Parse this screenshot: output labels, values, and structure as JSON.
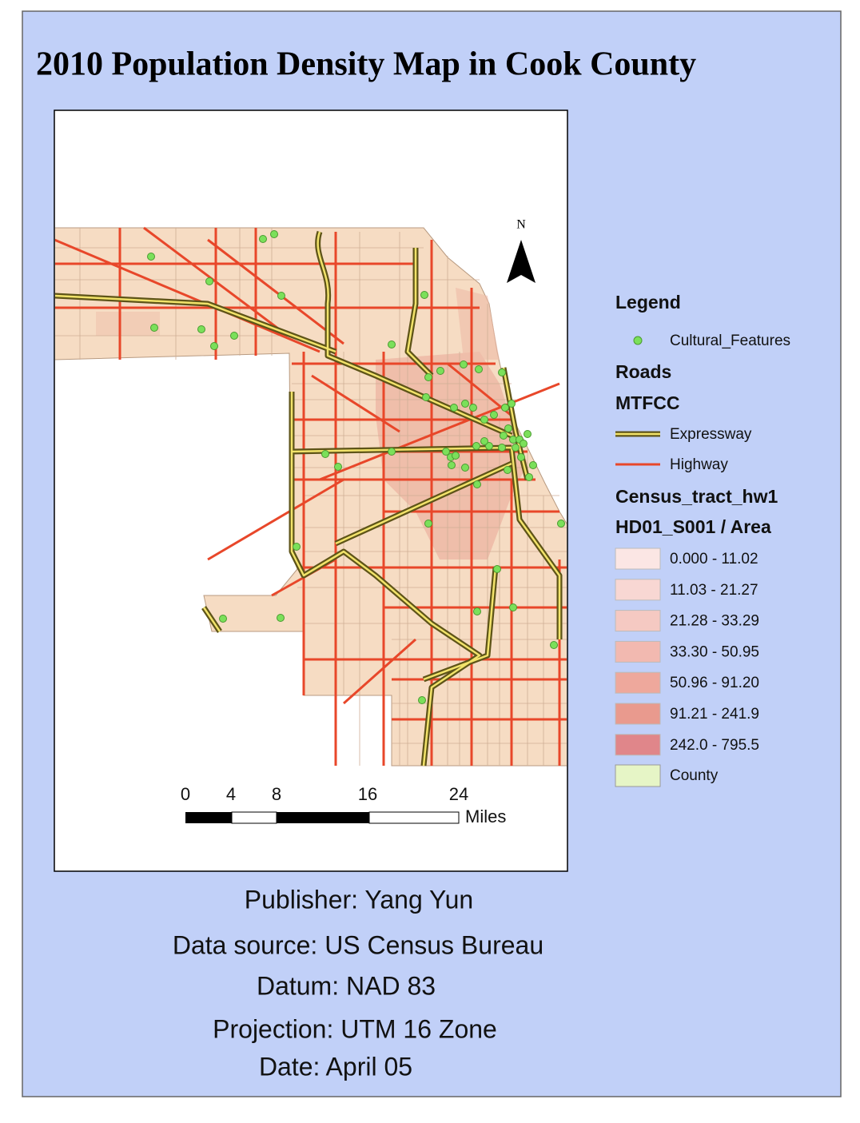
{
  "title": "2010 Population Density Map in Cook County",
  "map": {
    "north_arrow": "N",
    "scale_bar": {
      "labels": [
        "0",
        "4",
        "8",
        "16",
        "24"
      ],
      "unit": "Miles"
    }
  },
  "legend": {
    "title": "Legend",
    "point_layer": "Cultural_Features",
    "roads_title": "Roads",
    "roads_field": "MTFCC",
    "roads": [
      "Expressway",
      "Highway"
    ],
    "tracts_title": "Census_tract_hw1",
    "tracts_field": "HD01_S001 / Area",
    "classes": [
      "0.000 - 11.02",
      "11.03 - 21.27",
      "21.28 - 33.29",
      "33.30 - 50.95",
      "50.96 - 91.20",
      "91.21 - 241.9",
      "242.0 - 795.5"
    ],
    "county": "County"
  },
  "footer": [
    "Publisher: Yang Yun",
    "Data source: US Census Bureau",
    "Datum: NAD 83",
    "Projection: UTM 16 Zone",
    "Date: April 05"
  ]
}
